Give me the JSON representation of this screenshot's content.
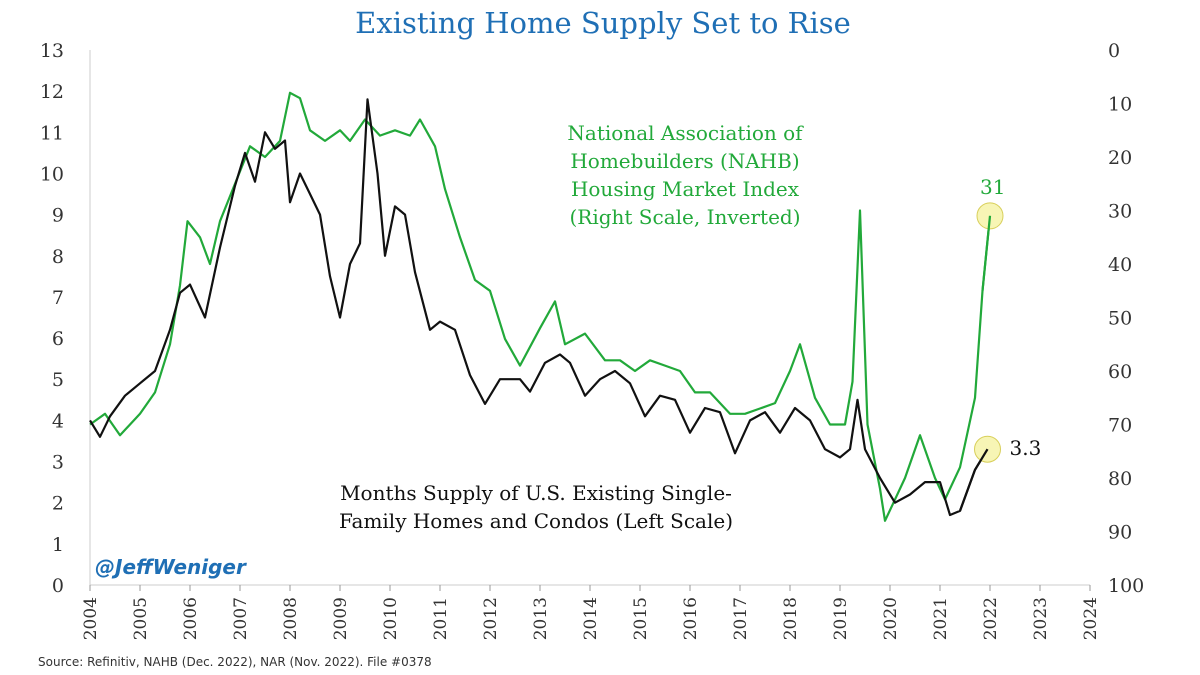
{
  "chart_data": {
    "type": "line",
    "title": "Existing Home Supply Set to Rise",
    "x_range": [
      2004,
      2024
    ],
    "y_left_ticks": [
      "0",
      "1",
      "2",
      "3",
      "4",
      "5",
      "6",
      "7",
      "8",
      "9",
      "10",
      "11",
      "12",
      "13"
    ],
    "y_right_ticks": [
      "0",
      "10",
      "20",
      "30",
      "40",
      "50",
      "60",
      "70",
      "80",
      "90",
      "100"
    ],
    "y_right_inverted": true,
    "x_ticks": [
      "2004",
      "2005",
      "2006",
      "2007",
      "2008",
      "2009",
      "2010",
      "2011",
      "2012",
      "2013",
      "2014",
      "2015",
      "2016",
      "2017",
      "2018",
      "2019",
      "2020",
      "2021",
      "2022",
      "2023",
      "2024"
    ],
    "series": [
      {
        "name": "Months Supply of U.S. Existing Single-Family Homes and Condos (Left Scale)",
        "axis": "left",
        "color": "#111111",
        "points": [
          [
            2004,
            4.0
          ],
          [
            2004.2,
            3.6
          ],
          [
            2004.4,
            4.1
          ],
          [
            2004.7,
            4.6
          ],
          [
            2005,
            4.9
          ],
          [
            2005.3,
            5.2
          ],
          [
            2005.6,
            6.2
          ],
          [
            2005.8,
            7.1
          ],
          [
            2006,
            7.3
          ],
          [
            2006.3,
            6.5
          ],
          [
            2006.6,
            8.2
          ],
          [
            2006.9,
            9.7
          ],
          [
            2007.1,
            10.5
          ],
          [
            2007.3,
            9.8
          ],
          [
            2007.5,
            11.0
          ],
          [
            2007.7,
            10.6
          ],
          [
            2007.9,
            10.8
          ],
          [
            2008,
            9.3
          ],
          [
            2008.2,
            10.0
          ],
          [
            2008.4,
            9.5
          ],
          [
            2008.6,
            9.0
          ],
          [
            2008.8,
            7.5
          ],
          [
            2009,
            6.5
          ],
          [
            2009.2,
            7.8
          ],
          [
            2009.4,
            8.3
          ],
          [
            2009.55,
            11.8
          ],
          [
            2009.75,
            10.0
          ],
          [
            2009.9,
            8.0
          ],
          [
            2010.1,
            9.2
          ],
          [
            2010.3,
            9.0
          ],
          [
            2010.5,
            7.6
          ],
          [
            2010.8,
            6.2
          ],
          [
            2011,
            6.4
          ],
          [
            2011.3,
            6.2
          ],
          [
            2011.6,
            5.1
          ],
          [
            2011.9,
            4.4
          ],
          [
            2012.2,
            5.0
          ],
          [
            2012.6,
            5.0
          ],
          [
            2012.8,
            4.7
          ],
          [
            2013.1,
            5.4
          ],
          [
            2013.4,
            5.6
          ],
          [
            2013.6,
            5.4
          ],
          [
            2013.9,
            4.6
          ],
          [
            2014.2,
            5.0
          ],
          [
            2014.5,
            5.2
          ],
          [
            2014.8,
            4.9
          ],
          [
            2015.1,
            4.1
          ],
          [
            2015.4,
            4.6
          ],
          [
            2015.7,
            4.5
          ],
          [
            2016,
            3.7
          ],
          [
            2016.3,
            4.3
          ],
          [
            2016.6,
            4.2
          ],
          [
            2016.9,
            3.2
          ],
          [
            2017.2,
            4.0
          ],
          [
            2017.5,
            4.2
          ],
          [
            2017.8,
            3.7
          ],
          [
            2018.1,
            4.3
          ],
          [
            2018.4,
            4.0
          ],
          [
            2018.7,
            3.3
          ],
          [
            2019,
            3.1
          ],
          [
            2019.2,
            3.3
          ],
          [
            2019.35,
            4.5
          ],
          [
            2019.5,
            3.3
          ],
          [
            2019.8,
            2.6
          ],
          [
            2020.1,
            2.0
          ],
          [
            2020.4,
            2.2
          ],
          [
            2020.7,
            2.5
          ],
          [
            2021,
            2.5
          ],
          [
            2021.2,
            1.7
          ],
          [
            2021.4,
            1.8
          ],
          [
            2021.7,
            2.8
          ],
          [
            2021.95,
            3.3
          ]
        ]
      },
      {
        "name": "National Association of Homebuilders (NAHB) Housing Market Index (Right Scale, Inverted)",
        "axis": "right",
        "color": "#22a93a",
        "points": [
          [
            2004,
            70
          ],
          [
            2004.3,
            68
          ],
          [
            2004.6,
            72
          ],
          [
            2005,
            68
          ],
          [
            2005.3,
            64
          ],
          [
            2005.6,
            55
          ],
          [
            2005.8,
            44
          ],
          [
            2005.95,
            32
          ],
          [
            2006.2,
            35
          ],
          [
            2006.4,
            40
          ],
          [
            2006.6,
            32
          ],
          [
            2006.9,
            25
          ],
          [
            2007.2,
            18
          ],
          [
            2007.5,
            20
          ],
          [
            2007.8,
            17
          ],
          [
            2008,
            8
          ],
          [
            2008.2,
            9
          ],
          [
            2008.4,
            15
          ],
          [
            2008.7,
            17
          ],
          [
            2009,
            15
          ],
          [
            2009.2,
            17
          ],
          [
            2009.5,
            13
          ],
          [
            2009.8,
            16
          ],
          [
            2010.1,
            15
          ],
          [
            2010.4,
            16
          ],
          [
            2010.6,
            13
          ],
          [
            2010.9,
            18
          ],
          [
            2011.1,
            26
          ],
          [
            2011.4,
            35
          ],
          [
            2011.7,
            43
          ],
          [
            2012,
            45
          ],
          [
            2012.3,
            54
          ],
          [
            2012.6,
            59
          ],
          [
            2013,
            52
          ],
          [
            2013.3,
            47
          ],
          [
            2013.5,
            55
          ],
          [
            2013.9,
            53
          ],
          [
            2014.3,
            58
          ],
          [
            2014.6,
            58
          ],
          [
            2014.9,
            60
          ],
          [
            2015.2,
            58
          ],
          [
            2015.5,
            59
          ],
          [
            2015.8,
            60
          ],
          [
            2016.1,
            64
          ],
          [
            2016.4,
            64
          ],
          [
            2016.8,
            68
          ],
          [
            2017.1,
            68
          ],
          [
            2017.4,
            67
          ],
          [
            2017.7,
            66
          ],
          [
            2018,
            60
          ],
          [
            2018.2,
            55
          ],
          [
            2018.5,
            65
          ],
          [
            2018.8,
            70
          ],
          [
            2019.1,
            70
          ],
          [
            2019.25,
            62
          ],
          [
            2019.4,
            30
          ],
          [
            2019.55,
            70
          ],
          [
            2019.8,
            82
          ],
          [
            2019.9,
            88
          ],
          [
            2020.05,
            85
          ],
          [
            2020.3,
            80
          ],
          [
            2020.6,
            72
          ],
          [
            2020.9,
            80
          ],
          [
            2021.1,
            84
          ],
          [
            2021.4,
            78
          ],
          [
            2021.7,
            65
          ],
          [
            2021.85,
            45
          ],
          [
            2022.0,
            31
          ]
        ]
      }
    ],
    "annotations": {
      "green_label": [
        "National Association of",
        "Homebuilders (NAHB)",
        "Housing Market Index",
        "(Right Scale, Inverted)"
      ],
      "black_label": [
        "Months Supply of U.S. Existing Single-",
        "Family Homes and Condos (Left Scale)"
      ],
      "green_end_value": "31",
      "black_end_value": "3.3"
    },
    "handle": "@JeffWeniger",
    "source": "Source: Refinitiv, NAHB (Dec. 2022), NAR (Nov. 2022). File #0378",
    "grid": false
  },
  "colors": {
    "green": "#22a93a",
    "black": "#111111",
    "title_blue": "#1f6fb5",
    "highlight": "#f6f3a8"
  }
}
